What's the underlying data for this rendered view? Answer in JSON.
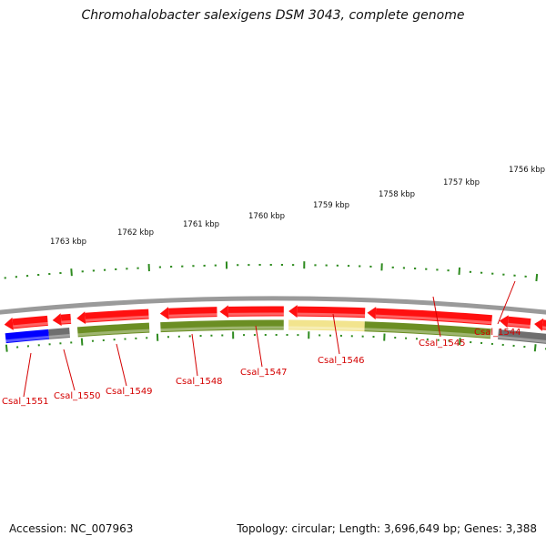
{
  "title": "Chromohalobacter salexigens DSM 3043, complete genome",
  "footer": {
    "accession": "Accession: NC_007963",
    "summary": "Topology: circular; Length: 3,696,649 bp; Genes: 3,388"
  },
  "colors": {
    "backbone": "#9a9a9a",
    "forward_cds": "#ff1010",
    "reverse_cds": "#6b8e23",
    "highlight_reverse": "#f2e48e",
    "blue_feature": "#0000ff",
    "grey_feature": "#6f6f6f",
    "tick": "#2e8b1f",
    "locus_label": "#d40000"
  },
  "kbp_ticks": [
    {
      "label": "1763 kbp"
    },
    {
      "label": "1762 kbp"
    },
    {
      "label": "1761 kbp"
    },
    {
      "label": "1760 kbp"
    },
    {
      "label": "1759 kbp"
    },
    {
      "label": "1758 kbp"
    },
    {
      "label": "1757 kbp"
    },
    {
      "label": "1756 kbp"
    }
  ],
  "locus_labels": [
    {
      "text": "Csal_1551"
    },
    {
      "text": "Csal_1550"
    },
    {
      "text": "Csal_1549"
    },
    {
      "text": "Csal_1548"
    },
    {
      "text": "Csal_1547"
    },
    {
      "text": "Csal_1546"
    },
    {
      "text": "Csal_1545"
    },
    {
      "text": "Csal_1544"
    }
  ]
}
